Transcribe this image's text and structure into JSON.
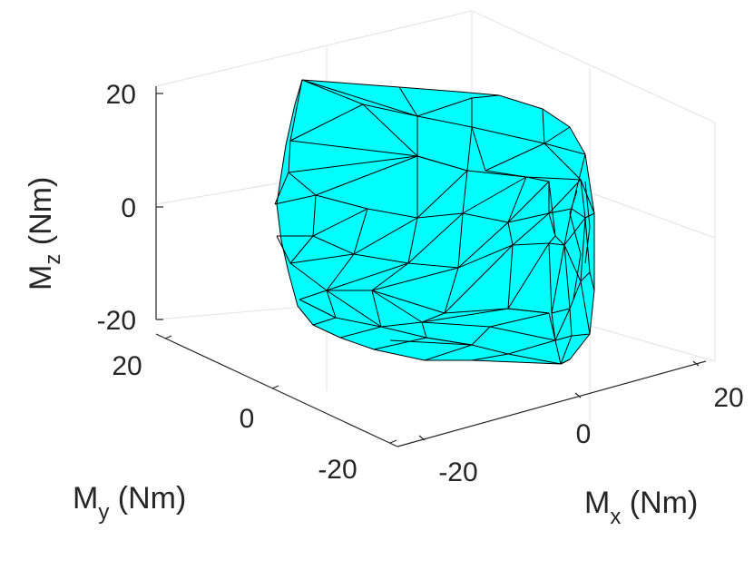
{
  "chart_data": {
    "type": "surface",
    "shape": "convex-hull",
    "view": "3d",
    "grid": true,
    "face_color": "#00FFFF",
    "edge_color": "#000000",
    "x_axis": {
      "label_main": "M",
      "label_sub": "x",
      "label_unit": " (Nm)",
      "range": [
        -25,
        25
      ],
      "ticks": [
        -20,
        0,
        20
      ],
      "tick_labels": [
        "-20",
        "0",
        "20"
      ]
    },
    "y_axis": {
      "label_main": "M",
      "label_sub": "y",
      "label_unit": " (Nm)",
      "range": [
        -25,
        25
      ],
      "ticks": [
        -20,
        0,
        20
      ],
      "tick_labels": [
        "-20",
        "0",
        "20"
      ]
    },
    "z_axis": {
      "label_main": "M",
      "label_sub": "z",
      "label_unit": " (Nm)",
      "range": [
        -22,
        22
      ],
      "ticks": [
        -20,
        0,
        20
      ],
      "tick_labels": [
        "-20",
        "0",
        "20"
      ]
    }
  }
}
